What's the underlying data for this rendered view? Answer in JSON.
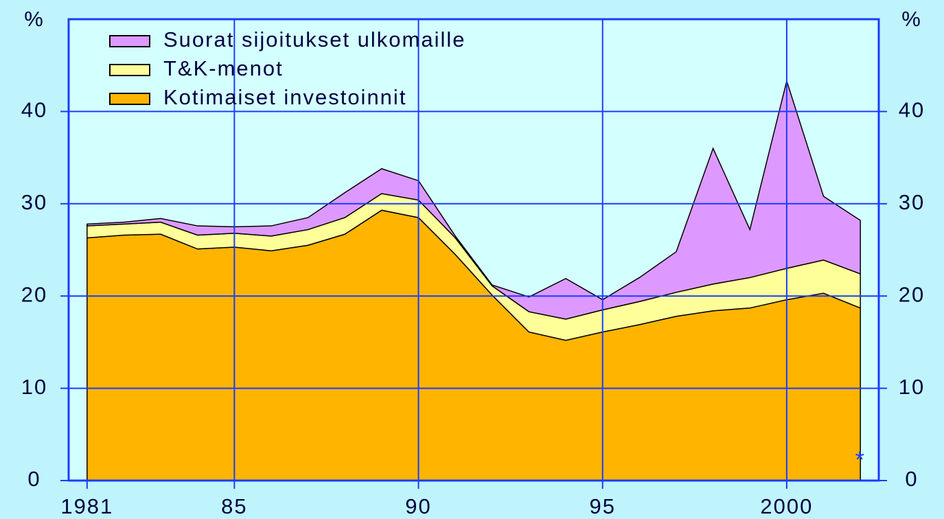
{
  "chart_data": {
    "type": "stacked_area",
    "y_label": "%",
    "x": [
      1981,
      1982,
      1983,
      1984,
      1985,
      1986,
      1987,
      1988,
      1989,
      1990,
      1991,
      1992,
      1993,
      1994,
      1995,
      1996,
      1997,
      1998,
      1999,
      2000,
      2001,
      2002
    ],
    "series": [
      {
        "name": "Kotimaiset investoinnit",
        "color": "#ffb400",
        "values": [
          26.3,
          26.6,
          26.7,
          25.1,
          25.3,
          24.9,
          25.5,
          26.7,
          29.3,
          28.5,
          24.5,
          20.1,
          16.1,
          15.2,
          16.1,
          16.9,
          17.8,
          18.4,
          18.7,
          19.6,
          20.3,
          18.7
        ]
      },
      {
        "name": "T&K-menot",
        "color": "#ffff99",
        "values": [
          1.3,
          1.2,
          1.3,
          1.5,
          1.5,
          1.6,
          1.7,
          1.8,
          1.8,
          1.9,
          1.8,
          1.0,
          2.2,
          2.3,
          2.4,
          2.5,
          2.6,
          2.9,
          3.3,
          3.4,
          3.6,
          3.7
        ]
      },
      {
        "name": "Suorat sijoitukset ulkomaille",
        "color": "#dd99ff",
        "values": [
          0.2,
          0.2,
          0.4,
          1.0,
          0.7,
          1.1,
          1.3,
          2.7,
          2.7,
          2.1,
          0.2,
          0.1,
          1.6,
          4.4,
          1.1,
          2.6,
          4.4,
          14.7,
          5.2,
          20.3,
          6.9,
          5.8
        ]
      }
    ],
    "xlim": [
      1980.5,
      2002.5
    ],
    "xticks": [
      {
        "value": 1981,
        "label": "1981"
      },
      {
        "value": 1985,
        "label": "85"
      },
      {
        "value": 1990,
        "label": "90"
      },
      {
        "value": 1995,
        "label": "95"
      },
      {
        "value": 2000,
        "label": "2000"
      }
    ],
    "ylim": [
      0,
      50
    ],
    "yticks": [
      0,
      10,
      20,
      30,
      40
    ],
    "grid": true,
    "legend": "upper left",
    "annotation": "*"
  }
}
